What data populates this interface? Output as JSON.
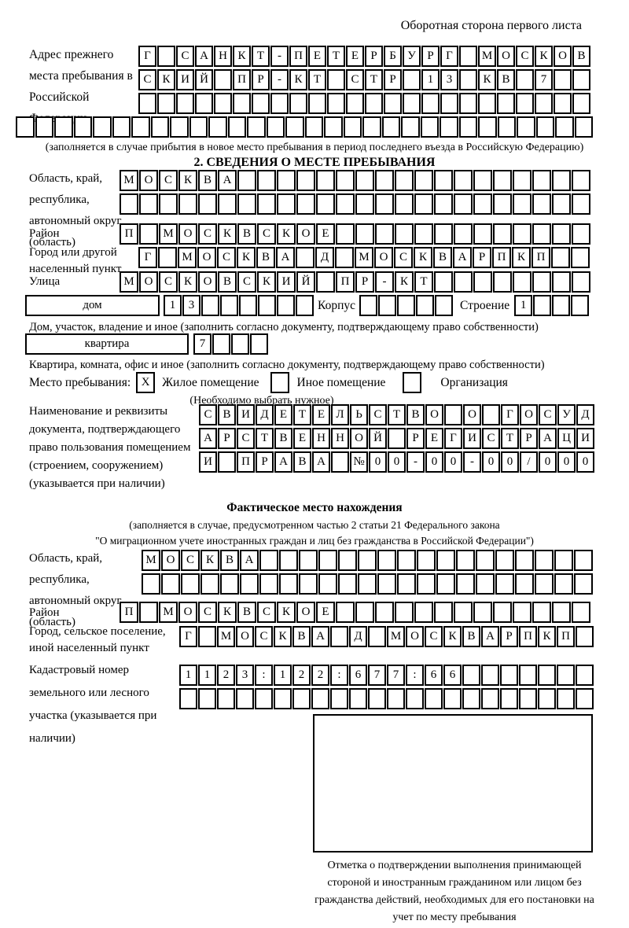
{
  "page": {
    "header_note": "Оборотная сторона первого листа"
  },
  "prev_address": {
    "label": "Адрес прежнего места пребывания в Российской Федерации",
    "rows": [
      [
        "Г",
        "",
        "С",
        "А",
        "Н",
        "К",
        "Т",
        "-",
        "П",
        "Е",
        "Т",
        "Е",
        "Р",
        "Б",
        "У",
        "Р",
        "Г",
        "",
        "М",
        "О",
        "С",
        "К",
        "О",
        "В"
      ],
      [
        "С",
        "К",
        "И",
        "Й",
        "",
        "П",
        "Р",
        "-",
        "К",
        "Т",
        "",
        "С",
        "Т",
        "Р",
        "",
        "1",
        "3",
        "",
        "К",
        "В",
        "",
        "7",
        "",
        ""
      ],
      [
        "",
        "",
        "",
        "",
        "",
        "",
        "",
        "",
        "",
        "",
        "",
        "",
        "",
        "",
        "",
        "",
        "",
        "",
        "",
        "",
        "",
        "",
        "",
        ""
      ]
    ],
    "overflow_row": [
      "",
      "",
      "",
      "",
      "",
      "",
      "",
      "",
      "",
      "",
      "",
      "",
      "",
      "",
      "",
      "",
      "",
      "",
      "",
      "",
      "",
      "",
      "",
      "",
      "",
      "",
      "",
      "",
      "",
      ""
    ],
    "note": "(заполняется в случае прибытия в новое место пребывания в период последнего въезда в Российскую Федерацию)"
  },
  "stay_info": {
    "title": "2. СВЕДЕНИЯ О МЕСТЕ ПРЕБЫВАНИЯ",
    "region": {
      "label": "Область, край, республика, автономный округ (область)",
      "rows": [
        [
          "М",
          "О",
          "С",
          "К",
          "В",
          "А",
          "",
          "",
          "",
          "",
          "",
          "",
          "",
          "",
          "",
          "",
          "",
          "",
          "",
          "",
          "",
          "",
          "",
          ""
        ],
        [
          "",
          "",
          "",
          "",
          "",
          "",
          "",
          "",
          "",
          "",
          "",
          "",
          "",
          "",
          "",
          "",
          "",
          "",
          "",
          "",
          "",
          "",
          "",
          ""
        ]
      ]
    },
    "district": {
      "label": "Район",
      "cells": [
        "П",
        "",
        "М",
        "О",
        "С",
        "К",
        "В",
        "С",
        "К",
        "О",
        "Е",
        "",
        "",
        "",
        "",
        "",
        "",
        "",
        "",
        "",
        "",
        "",
        "",
        ""
      ]
    },
    "city": {
      "label": "Город или другой населенный пункт",
      "cells": [
        "Г",
        "",
        "М",
        "О",
        "С",
        "К",
        "В",
        "А",
        "",
        "Д",
        "",
        "М",
        "О",
        "С",
        "К",
        "В",
        "А",
        "Р",
        "П",
        "К",
        "П",
        "",
        ""
      ]
    },
    "street": {
      "label": "Улица",
      "cells": [
        "М",
        "О",
        "С",
        "К",
        "О",
        "В",
        "С",
        "К",
        "И",
        "Й",
        "",
        "П",
        "Р",
        "-",
        "К",
        "Т",
        "",
        "",
        "",
        "",
        "",
        "",
        "",
        ""
      ]
    },
    "house": {
      "box_label": "дом",
      "cells": [
        "1",
        "3",
        "",
        "",
        "",
        "",
        "",
        ""
      ],
      "korpus_label": "Корпус",
      "korpus_cells": [
        "",
        "",
        "",
        "",
        ""
      ],
      "stroenie_label": "Строение",
      "stroenie_cells": [
        "1",
        "",
        "",
        ""
      ]
    },
    "house_caption": "Дом, участок, владение и иное (заполнить согласно документу, подтверждающему право собственности)",
    "apartment": {
      "box_label": "квартира",
      "cells": [
        "7",
        "",
        "",
        ""
      ]
    },
    "apartment_caption": "Квартира, комната, офис и иное (заполнить согласно документу, подтверждающему право собственности)",
    "stay_type": {
      "label": "Место пребывания:",
      "options": [
        {
          "label": "Жилое помещение",
          "mark": "X"
        },
        {
          "label": "Иное помещение",
          "mark": ""
        },
        {
          "label": "Организация",
          "mark": ""
        }
      ],
      "note": "(Необходимо выбрать нужное)"
    },
    "document": {
      "label": "Наименование и реквизиты документа, подтверждающего право пользования помещением (строением, сооружением) (указывается при наличии)",
      "rows": [
        [
          "С",
          "В",
          "И",
          "Д",
          "Е",
          "Т",
          "Е",
          "Л",
          "Ь",
          "С",
          "Т",
          "В",
          "О",
          "",
          "О",
          "",
          "Г",
          "О",
          "С",
          "У",
          "Д"
        ],
        [
          "А",
          "Р",
          "С",
          "Т",
          "В",
          "Е",
          "Н",
          "Н",
          "О",
          "Й",
          "",
          "Р",
          "Е",
          "Г",
          "И",
          "С",
          "Т",
          "Р",
          "А",
          "Ц",
          "И"
        ],
        [
          "И",
          "",
          "П",
          "Р",
          "А",
          "В",
          "А",
          "",
          "№",
          "0",
          "0",
          "-",
          "0",
          "0",
          "-",
          "0",
          "0",
          "/",
          "0",
          "0",
          "0"
        ]
      ]
    }
  },
  "actual_location": {
    "title": "Фактическое место нахождения",
    "note_line1": "(заполняется в случае, предусмотренном частью 2 статьи 21 Федерального закона",
    "note_line2": "\"О миграционном учете иностранных граждан и лиц без гражданства в Российской Федерации\")",
    "region": {
      "label": "Область, край, республика, автономный округ (область)",
      "rows": [
        [
          "М",
          "О",
          "С",
          "К",
          "В",
          "А",
          "",
          "",
          "",
          "",
          "",
          "",
          "",
          "",
          "",
          "",
          "",
          "",
          "",
          "",
          "",
          "",
          ""
        ],
        [
          "",
          "",
          "",
          "",
          "",
          "",
          "",
          "",
          "",
          "",
          "",
          "",
          "",
          "",
          "",
          "",
          "",
          "",
          "",
          "",
          "",
          "",
          ""
        ]
      ]
    },
    "district": {
      "label": "Район",
      "cells": [
        "П",
        "",
        "М",
        "О",
        "С",
        "К",
        "В",
        "С",
        "К",
        "О",
        "Е",
        "",
        "",
        "",
        "",
        "",
        "",
        "",
        "",
        "",
        "",
        "",
        "",
        ""
      ]
    },
    "city": {
      "label": "Город, сельское поселение, иной населенный пункт",
      "cells": [
        "Г",
        "",
        "М",
        "О",
        "С",
        "К",
        "В",
        "А",
        "",
        "Д",
        "",
        "М",
        "О",
        "С",
        "К",
        "В",
        "А",
        "Р",
        "П",
        "К",
        "П",
        ""
      ]
    },
    "cadastre": {
      "label": "Кадастровый номер земельного или лесного участка (указывается при наличии)",
      "rows": [
        [
          "1",
          "1",
          "2",
          "3",
          ":",
          "1",
          "2",
          "2",
          ":",
          "6",
          "7",
          "7",
          ":",
          "6",
          "6",
          "",
          "",
          "",
          "",
          "",
          "",
          ""
        ],
        [
          "",
          "",
          "",
          "",
          "",
          "",
          "",
          "",
          "",
          "",
          "",
          "",
          "",
          "",
          "",
          "",
          "",
          "",
          "",
          "",
          "",
          ""
        ]
      ]
    }
  },
  "stamp": {
    "caption": "Отметка о подтверждении выполнения принимающей стороной и иностранным гражданином или лицом без гражданства действий, необходимых для его постановки на учет по месту пребывания"
  }
}
